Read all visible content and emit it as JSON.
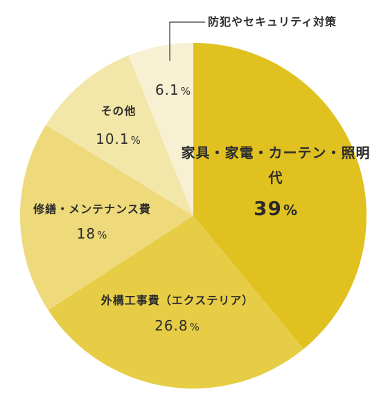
{
  "chart_data": {
    "type": "pie",
    "title": "",
    "legend": "none",
    "slices": [
      {
        "label": "家具・家電・カーテン・照明代",
        "value": 39,
        "value_text": "39",
        "unit": "%",
        "color": "#e0c11f"
      },
      {
        "label": "外構工事費（エクステリア）",
        "value": 26.8,
        "value_text": "26.8",
        "unit": "%",
        "color": "#e6cd45"
      },
      {
        "label": "修繕・メンテナンス費",
        "value": 18,
        "value_text": "18",
        "unit": "%",
        "color": "#eed97b"
      },
      {
        "label": "その他",
        "value": 10.1,
        "value_text": "10.1",
        "unit": "%",
        "color": "#f3e6a9"
      },
      {
        "label": "防犯やセキュリティ対策",
        "value": 6.1,
        "value_text": "6.1",
        "unit": "%",
        "color": "#f8f0d3"
      }
    ]
  }
}
